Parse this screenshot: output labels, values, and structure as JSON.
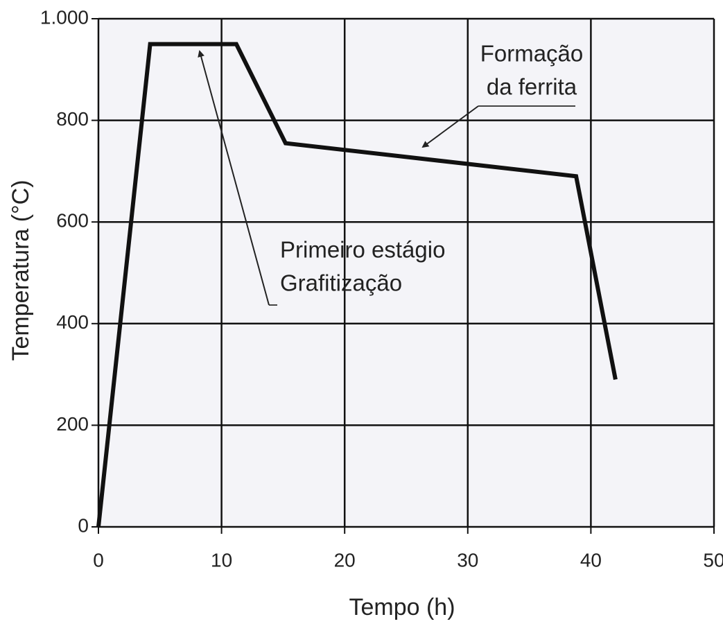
{
  "chart_data": {
    "type": "line",
    "x_label": "Tempo (h)",
    "y_label": "Temperatura (°C)",
    "x": [
      0,
      4.2,
      11.2,
      15.2,
      38.8,
      42
    ],
    "series": [
      {
        "color": "#111111",
        "values": [
          0,
          950,
          950,
          755,
          690,
          290
        ]
      }
    ],
    "xlim": [
      0,
      50
    ],
    "xticks": [
      0,
      10,
      20,
      30,
      40,
      50
    ],
    "ylim": [
      0,
      1000
    ],
    "yticks": [
      0,
      200,
      400,
      600,
      800,
      {
        "value": 1000,
        "label": "1.000"
      }
    ],
    "grid": true,
    "annotations": [
      {
        "lines": [
          "Formação",
          "da ferrita"
        ]
      },
      {
        "lines": [
          "Primeiro estágio",
          "Grafitização"
        ]
      }
    ]
  }
}
